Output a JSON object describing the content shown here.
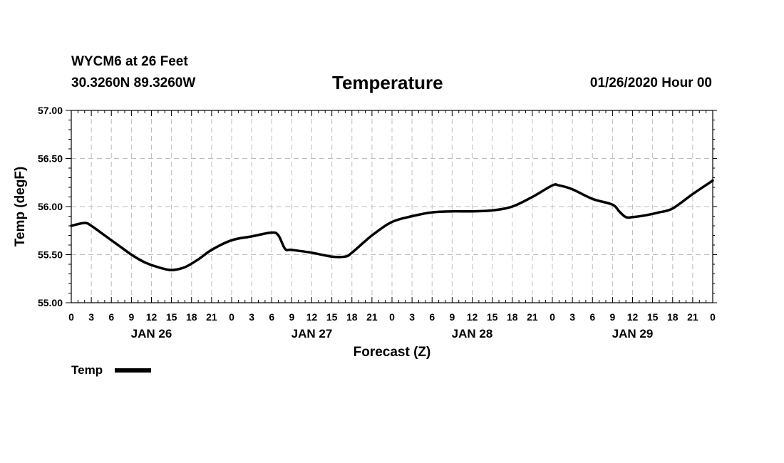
{
  "header": {
    "station": "WYCM6 at 26 Feet",
    "coords": "30.3260N 89.3260W",
    "title": "Temperature",
    "datetime": "01/26/2020 Hour 00"
  },
  "legend": {
    "label": "Temp"
  },
  "chart_data": {
    "type": "line",
    "title": "Temperature",
    "xlabel": "Forecast (Z)",
    "ylabel": "Temp (degF)",
    "xlim": [
      0,
      96
    ],
    "ylim": [
      55.0,
      57.0
    ],
    "grid": true,
    "legend_position": "bottom-left",
    "y_ticks": [
      {
        "value": 55.0,
        "label": "55.00"
      },
      {
        "value": 55.5,
        "label": "55.50"
      },
      {
        "value": 56.0,
        "label": "56.00"
      },
      {
        "value": 56.5,
        "label": "56.50"
      },
      {
        "value": 57.0,
        "label": "57.00"
      }
    ],
    "x_ticks": [
      {
        "value": 0,
        "label": "0"
      },
      {
        "value": 3,
        "label": "3"
      },
      {
        "value": 6,
        "label": "6"
      },
      {
        "value": 9,
        "label": "9"
      },
      {
        "value": 12,
        "label": "12"
      },
      {
        "value": 15,
        "label": "15"
      },
      {
        "value": 18,
        "label": "18"
      },
      {
        "value": 21,
        "label": "21"
      },
      {
        "value": 24,
        "label": "0"
      },
      {
        "value": 27,
        "label": "3"
      },
      {
        "value": 30,
        "label": "6"
      },
      {
        "value": 33,
        "label": "9"
      },
      {
        "value": 36,
        "label": "12"
      },
      {
        "value": 39,
        "label": "15"
      },
      {
        "value": 42,
        "label": "18"
      },
      {
        "value": 45,
        "label": "21"
      },
      {
        "value": 48,
        "label": "0"
      },
      {
        "value": 51,
        "label": "3"
      },
      {
        "value": 54,
        "label": "6"
      },
      {
        "value": 57,
        "label": "9"
      },
      {
        "value": 60,
        "label": "12"
      },
      {
        "value": 63,
        "label": "15"
      },
      {
        "value": 66,
        "label": "18"
      },
      {
        "value": 69,
        "label": "21"
      },
      {
        "value": 72,
        "label": "0"
      },
      {
        "value": 75,
        "label": "3"
      },
      {
        "value": 78,
        "label": "6"
      },
      {
        "value": 81,
        "label": "9"
      },
      {
        "value": 84,
        "label": "12"
      },
      {
        "value": 87,
        "label": "15"
      },
      {
        "value": 90,
        "label": "18"
      },
      {
        "value": 93,
        "label": "21"
      },
      {
        "value": 96,
        "label": "0"
      }
    ],
    "day_labels": [
      {
        "value": 12,
        "label": "JAN 26"
      },
      {
        "value": 36,
        "label": "JAN 27"
      },
      {
        "value": 60,
        "label": "JAN 28"
      },
      {
        "value": 84,
        "label": "JAN 29"
      }
    ],
    "series": [
      {
        "name": "Temp",
        "color": "#000000",
        "x": [
          0,
          2,
          3,
          5,
          7,
          9,
          11,
          13,
          15,
          17,
          19,
          21,
          24,
          27,
          30,
          31,
          32,
          33,
          36,
          39,
          41,
          42,
          45,
          48,
          51,
          54,
          57,
          60,
          63,
          66,
          69,
          72,
          73,
          75,
          78,
          81,
          82,
          83,
          84,
          86,
          88,
          90,
          93,
          96
        ],
        "y": [
          55.8,
          55.83,
          55.8,
          55.7,
          55.6,
          55.5,
          55.42,
          55.37,
          55.34,
          55.37,
          55.45,
          55.55,
          55.65,
          55.69,
          55.73,
          55.7,
          55.56,
          55.55,
          55.52,
          55.48,
          55.48,
          55.52,
          55.7,
          55.84,
          55.9,
          55.94,
          55.95,
          55.95,
          55.96,
          56.0,
          56.1,
          56.22,
          56.22,
          56.18,
          56.08,
          56.02,
          55.95,
          55.89,
          55.89,
          55.91,
          55.94,
          55.98,
          56.13,
          56.27
        ]
      }
    ]
  }
}
